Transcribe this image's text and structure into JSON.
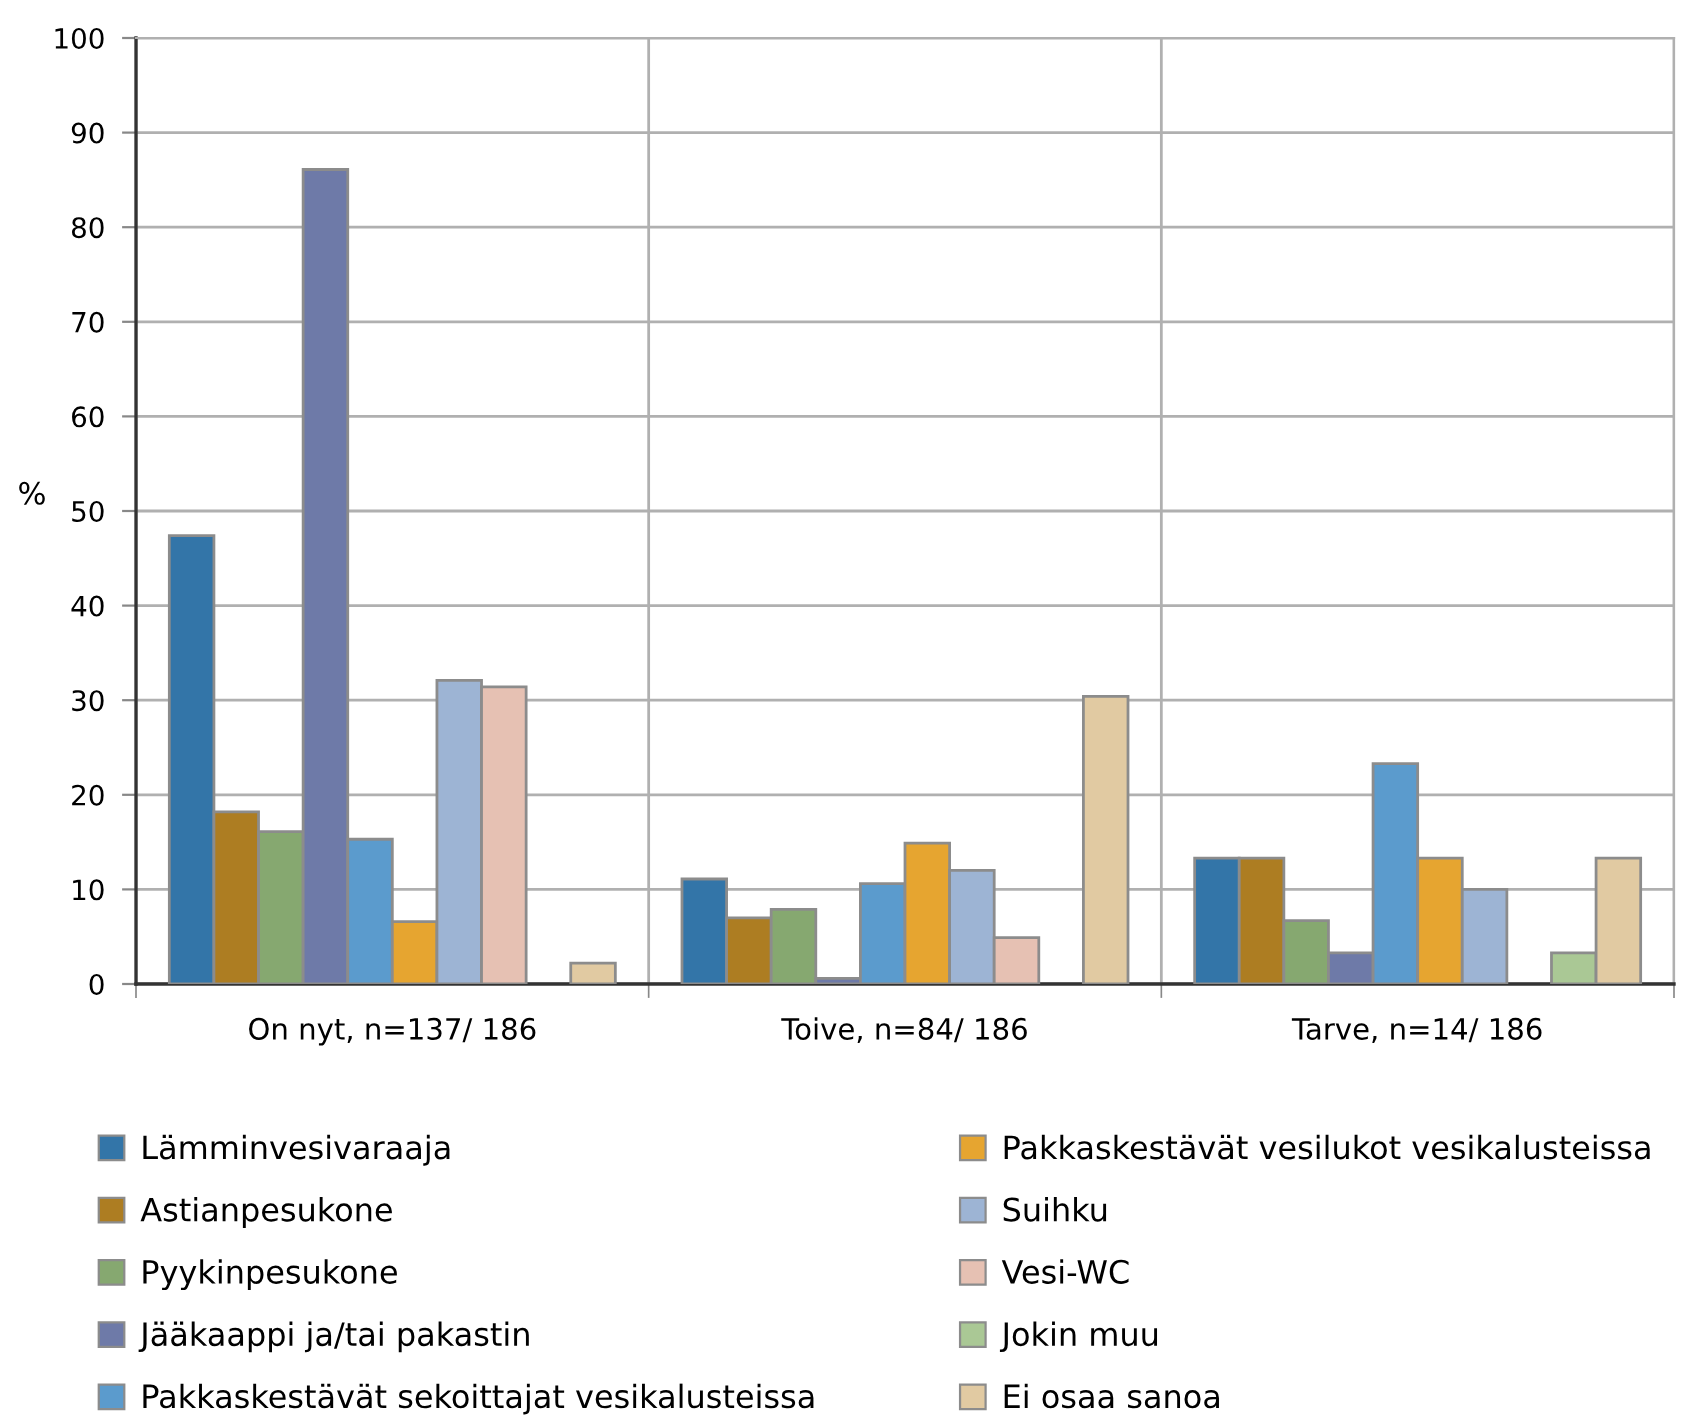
{
  "chart_data": {
    "type": "bar",
    "ylabel": "%",
    "categories": [
      "On nyt, n=137/ 186",
      "Toive, n=84/ 186",
      "Tarve, n=14/ 186"
    ],
    "series": [
      {
        "name": "Lämminvesivaraaja",
        "color": "#3375a8",
        "values": [
          47.4,
          11.1,
          13.3
        ]
      },
      {
        "name": "Astianpesukone",
        "color": "#ad7d22",
        "values": [
          18.2,
          7.0,
          13.3
        ]
      },
      {
        "name": "Pyykinpesukone",
        "color": "#86a870",
        "values": [
          16.1,
          7.9,
          6.7
        ]
      },
      {
        "name": "Jääkaappi ja/tai pakastin",
        "color": "#6e7aa8",
        "values": [
          86.1,
          0.6,
          3.3
        ]
      },
      {
        "name": "Pakkaskestävät sekoittajat vesikalusteissa",
        "color": "#5b9bcd",
        "values": [
          15.3,
          10.6,
          23.3
        ]
      },
      {
        "name": "Pakkaskestävät vesilukot vesikalusteissa",
        "color": "#e6a530",
        "values": [
          6.6,
          14.9,
          13.3
        ]
      },
      {
        "name": "Suihku",
        "color": "#9db4d4",
        "values": [
          32.1,
          12.0,
          10.0
        ]
      },
      {
        "name": "Vesi-WC",
        "color": "#e6c1b3",
        "values": [
          31.4,
          4.9,
          null
        ]
      },
      {
        "name": "Jokin muu",
        "color": "#aac895",
        "values": [
          null,
          null,
          3.3
        ]
      },
      {
        "name": "Ei osaa sanoa",
        "color": "#e1caa2",
        "values": [
          2.2,
          30.4,
          13.3
        ]
      }
    ],
    "ylim": [
      0,
      100
    ],
    "yticks": [
      0,
      10,
      20,
      30,
      40,
      50,
      60,
      70,
      80,
      90,
      100
    ],
    "grid": true,
    "legend": "bottom"
  }
}
